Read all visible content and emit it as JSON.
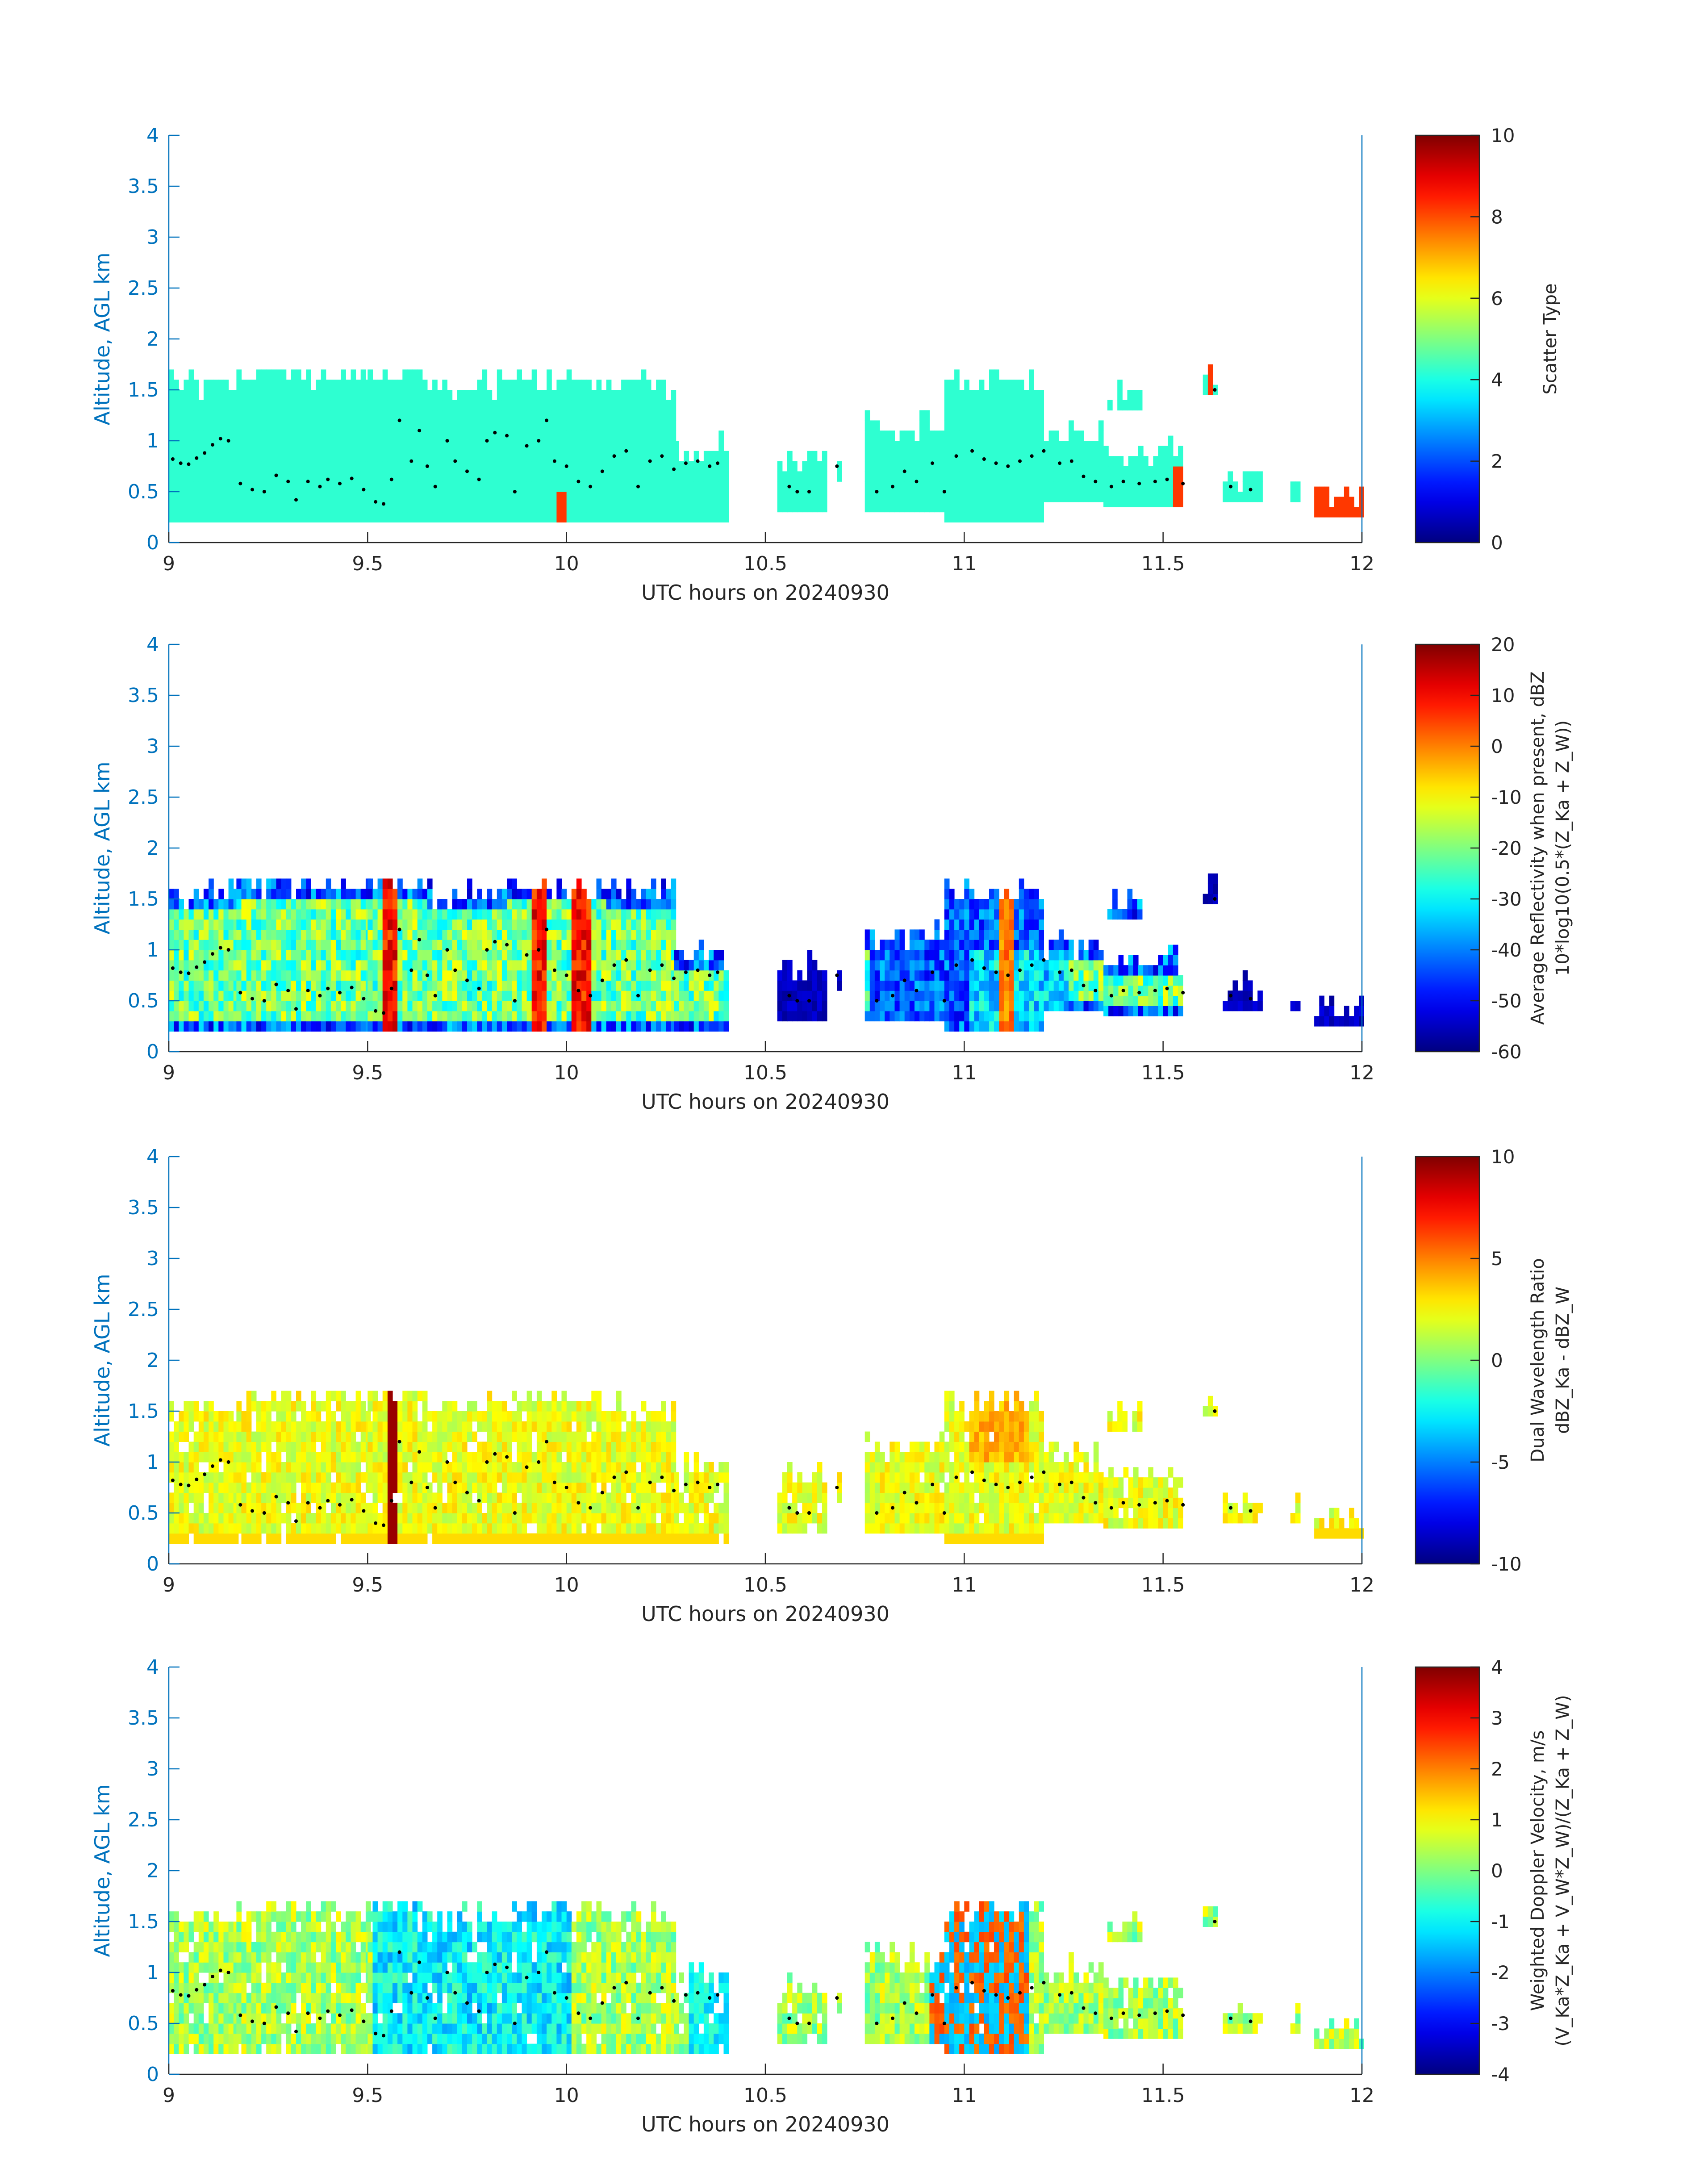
{
  "colors": {
    "axis": "#0072BD",
    "text": "#262626",
    "cluster_dot": "#000000",
    "colormap": "jet"
  },
  "chart_data": [
    {
      "type": "heatmap",
      "title": "",
      "xlabel": "UTC hours on 20240930",
      "ylabel": "Altitude, AGL km",
      "xlim": [
        9,
        12
      ],
      "ylim": [
        0,
        4
      ],
      "x_ticks": [
        "9",
        "9.5",
        "10",
        "10.5",
        "11",
        "11.5",
        "12"
      ],
      "y_ticks": [
        "0",
        "0.5",
        "1",
        "1.5",
        "2",
        "2.5",
        "3",
        "3.5",
        "4"
      ],
      "colorbar": {
        "label_lines": [
          "Scatter Type"
        ],
        "clim": [
          0,
          10
        ],
        "ticks": [
          "0",
          "2",
          "4",
          "6",
          "8",
          "10"
        ]
      },
      "variable": "scatter_type"
    },
    {
      "type": "heatmap",
      "title": "",
      "xlabel": "UTC hours on 20240930",
      "ylabel": "Altitude, AGL km",
      "xlim": [
        9,
        12
      ],
      "ylim": [
        0,
        4
      ],
      "x_ticks": [
        "9",
        "9.5",
        "10",
        "10.5",
        "11",
        "11.5",
        "12"
      ],
      "y_ticks": [
        "0",
        "0.5",
        "1",
        "1.5",
        "2",
        "2.5",
        "3",
        "3.5",
        "4"
      ],
      "colorbar": {
        "label_lines": [
          "Average Reflectivity when present, dBZ",
          "10*log10(0.5*(Z_Ka + Z_W))"
        ],
        "clim": [
          -60,
          20
        ],
        "ticks": [
          "-60",
          "-50",
          "-40",
          "-30",
          "-20",
          "-10",
          "0",
          "10",
          "20"
        ]
      },
      "variable": "reflectivity"
    },
    {
      "type": "heatmap",
      "title": "",
      "xlabel": "UTC hours on 20240930",
      "ylabel": "Altitude, AGL km",
      "xlim": [
        9,
        12
      ],
      "ylim": [
        0,
        4
      ],
      "x_ticks": [
        "9",
        "9.5",
        "10",
        "10.5",
        "11",
        "11.5",
        "12"
      ],
      "y_ticks": [
        "0",
        "0.5",
        "1",
        "1.5",
        "2",
        "2.5",
        "3",
        "3.5",
        "4"
      ],
      "colorbar": {
        "label_lines": [
          "Dual Wavelength Ratio",
          "dBZ_Ka - dBZ_W"
        ],
        "clim": [
          -10,
          10
        ],
        "ticks": [
          "-10",
          "-5",
          "0",
          "5",
          "10"
        ]
      },
      "variable": "dwr"
    },
    {
      "type": "heatmap",
      "title": "",
      "xlabel": "UTC hours on 20240930",
      "ylabel": "Altitude, AGL km",
      "xlim": [
        9,
        12
      ],
      "ylim": [
        0,
        4
      ],
      "x_ticks": [
        "9",
        "9.5",
        "10",
        "10.5",
        "11",
        "11.5",
        "12"
      ],
      "y_ticks": [
        "0",
        "0.5",
        "1",
        "1.5",
        "2",
        "2.5",
        "3",
        "3.5",
        "4"
      ],
      "colorbar": {
        "label_lines": [
          "Weighted Doppler Velocity, m/s",
          "(V_Ka*Z_Ka + V_W*Z_W)/(Z_Ka + Z_W)"
        ],
        "clim": [
          -4,
          4
        ],
        "ticks": [
          "-4",
          "-3",
          "-2",
          "-1",
          "0",
          "1",
          "2",
          "3",
          "4"
        ]
      },
      "variable": "velocity"
    }
  ],
  "echo_segments": [
    {
      "x": [
        9.0,
        9.17
      ],
      "base": 0.2,
      "top": 1.5
    },
    {
      "x": [
        9.17,
        9.5
      ],
      "base": 0.2,
      "top": 1.6
    },
    {
      "x": [
        9.5,
        9.65
      ],
      "base": 0.2,
      "top": 1.65
    },
    {
      "x": [
        9.65,
        9.85
      ],
      "base": 0.2,
      "top": 1.5
    },
    {
      "x": [
        9.85,
        10.1
      ],
      "base": 0.2,
      "top": 1.6
    },
    {
      "x": [
        10.1,
        10.27
      ],
      "base": 0.2,
      "top": 1.5
    },
    {
      "x": [
        10.27,
        10.4
      ],
      "base": 0.2,
      "top": 0.9
    },
    {
      "x": [
        10.53,
        10.65
      ],
      "base": 0.3,
      "top": 0.8
    },
    {
      "x": [
        10.68,
        10.69
      ],
      "base": 0.6,
      "top": 0.8
    },
    {
      "x": [
        10.75,
        10.95
      ],
      "base": 0.3,
      "top": 1.1
    },
    {
      "x": [
        10.95,
        11.2
      ],
      "base": 0.2,
      "top": 1.55
    },
    {
      "x": [
        11.2,
        11.35
      ],
      "base": 0.4,
      "top": 1.0
    },
    {
      "x": [
        11.35,
        11.55
      ],
      "base": 0.35,
      "top": 0.85
    },
    {
      "x": [
        11.36,
        11.44
      ],
      "base": 1.3,
      "top": 1.4
    },
    {
      "x": [
        11.6,
        11.63
      ],
      "base": 1.45,
      "top": 1.6
    },
    {
      "x": [
        11.65,
        11.75
      ],
      "base": 0.4,
      "top": 0.6
    },
    {
      "x": [
        11.82,
        11.84
      ],
      "base": 0.4,
      "top": 0.55
    },
    {
      "x": [
        11.88,
        12.0
      ],
      "base": 0.25,
      "top": 0.4
    }
  ],
  "cluster_points": [
    [
      9.01,
      0.82
    ],
    [
      9.03,
      0.78
    ],
    [
      9.05,
      0.77
    ],
    [
      9.07,
      0.83
    ],
    [
      9.09,
      0.88
    ],
    [
      9.11,
      0.96
    ],
    [
      9.13,
      1.02
    ],
    [
      9.15,
      1.0
    ],
    [
      9.18,
      0.58
    ],
    [
      9.21,
      0.52
    ],
    [
      9.24,
      0.5
    ],
    [
      9.27,
      0.66
    ],
    [
      9.3,
      0.6
    ],
    [
      9.32,
      0.42
    ],
    [
      9.35,
      0.6
    ],
    [
      9.38,
      0.55
    ],
    [
      9.4,
      0.62
    ],
    [
      9.43,
      0.58
    ],
    [
      9.46,
      0.63
    ],
    [
      9.49,
      0.52
    ],
    [
      9.52,
      0.4
    ],
    [
      9.54,
      0.38
    ],
    [
      9.56,
      0.62
    ],
    [
      9.58,
      1.2
    ],
    [
      9.61,
      0.8
    ],
    [
      9.63,
      1.1
    ],
    [
      9.65,
      0.75
    ],
    [
      9.67,
      0.55
    ],
    [
      9.7,
      1.0
    ],
    [
      9.72,
      0.8
    ],
    [
      9.75,
      0.7
    ],
    [
      9.78,
      0.62
    ],
    [
      9.8,
      1.0
    ],
    [
      9.82,
      1.08
    ],
    [
      9.85,
      1.05
    ],
    [
      9.87,
      0.5
    ],
    [
      9.9,
      0.95
    ],
    [
      9.93,
      1.0
    ],
    [
      9.95,
      1.2
    ],
    [
      9.97,
      0.8
    ],
    [
      10.0,
      0.75
    ],
    [
      10.03,
      0.6
    ],
    [
      10.06,
      0.55
    ],
    [
      10.09,
      0.7
    ],
    [
      10.12,
      0.85
    ],
    [
      10.15,
      0.9
    ],
    [
      10.18,
      0.55
    ],
    [
      10.21,
      0.8
    ],
    [
      10.24,
      0.85
    ],
    [
      10.27,
      0.72
    ],
    [
      10.3,
      0.78
    ],
    [
      10.33,
      0.8
    ],
    [
      10.36,
      0.75
    ],
    [
      10.38,
      0.78
    ],
    [
      10.56,
      0.55
    ],
    [
      10.58,
      0.5
    ],
    [
      10.61,
      0.5
    ],
    [
      10.68,
      0.75
    ],
    [
      10.78,
      0.5
    ],
    [
      10.82,
      0.55
    ],
    [
      10.85,
      0.7
    ],
    [
      10.88,
      0.6
    ],
    [
      10.92,
      0.78
    ],
    [
      10.95,
      0.5
    ],
    [
      10.98,
      0.85
    ],
    [
      11.02,
      0.9
    ],
    [
      11.05,
      0.82
    ],
    [
      11.08,
      0.78
    ],
    [
      11.11,
      0.75
    ],
    [
      11.14,
      0.8
    ],
    [
      11.17,
      0.85
    ],
    [
      11.2,
      0.9
    ],
    [
      11.24,
      0.78
    ],
    [
      11.27,
      0.8
    ],
    [
      11.3,
      0.65
    ],
    [
      11.33,
      0.6
    ],
    [
      11.37,
      0.55
    ],
    [
      11.4,
      0.6
    ],
    [
      11.44,
      0.58
    ],
    [
      11.48,
      0.6
    ],
    [
      11.51,
      0.62
    ],
    [
      11.55,
      0.58
    ],
    [
      11.63,
      1.5
    ],
    [
      11.67,
      0.55
    ],
    [
      11.72,
      0.52
    ]
  ]
}
